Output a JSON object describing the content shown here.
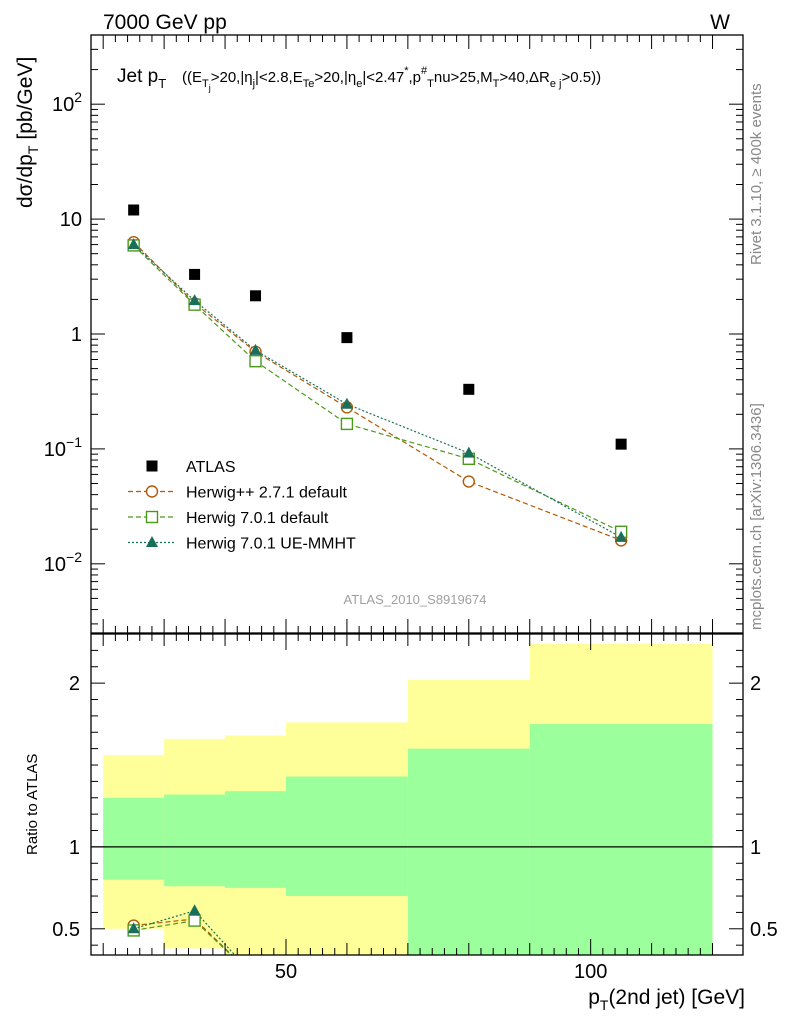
{
  "header": {
    "left": "7000 GeV pp",
    "right": "W"
  },
  "side_text": {
    "rivet": "Rivet 3.1.10, ≥ 400k events",
    "mcplots": "mcplots.cern.ch [arXiv:1306.3436]"
  },
  "chart_data": [
    {
      "type": "scatter",
      "panel": "main",
      "title": "Jet pT ((ETj>20,|ηj|<2.8,ETe>20,|ηe|<2.47*,pT#nu>25,MT>40,ΔRej>0.5))",
      "title_parts": {
        "main": "Jet p",
        "sub": "T",
        "cuts": "((E",
        "segments": [
          {
            "t": "((E",
            "s": "b"
          },
          {
            "t": "T",
            "s": "sub"
          },
          {
            "t": "j",
            "s": "subsub"
          },
          {
            "t": ">20,|η",
            "s": "b"
          },
          {
            "t": "j",
            "s": "sub"
          },
          {
            "t": "|<2.8,E",
            "s": "b"
          },
          {
            "t": "Te",
            "s": "sub"
          },
          {
            "t": ">20,|η",
            "s": "b"
          },
          {
            "t": "e",
            "s": "sub"
          },
          {
            "t": "|<2.47",
            "s": "b"
          },
          {
            "t": "*",
            "s": "sup"
          },
          {
            "t": ",p",
            "s": "b"
          },
          {
            "t": "#",
            "s": "sup"
          },
          {
            "t": "T",
            "s": "sub"
          },
          {
            "t": "nu>25,M",
            "s": "b"
          },
          {
            "t": "T",
            "s": "sub"
          },
          {
            "t": ">40,ΔR",
            "s": "b"
          },
          {
            "t": "e j",
            "s": "sub"
          },
          {
            "t": ">0.5))",
            "s": "b"
          }
        ]
      },
      "ylabel": "dσ/dp_T [pb/GeV]",
      "ylabel_parts": {
        "a": "dσ/dp",
        "b": "T",
        "c": "[pb/GeV]"
      },
      "yscale": "log",
      "ylim": [
        0.0025,
        400
      ],
      "xlim": [
        18,
        125
      ],
      "y_ticks": [
        {
          "v": 0.01,
          "base": "10",
          "exp": "−2"
        },
        {
          "v": 0.1,
          "base": "10",
          "exp": "−1"
        },
        {
          "v": 1,
          "base": "1",
          "exp": ""
        },
        {
          "v": 10,
          "base": "10",
          "exp": ""
        },
        {
          "v": 100,
          "base": "10",
          "exp": "2"
        }
      ],
      "watermark": "ATLAS_2010_S8919674",
      "legend_position": "bottom-left",
      "series": [
        {
          "name": "ATLAS",
          "marker": "filled-square",
          "color": "#000000",
          "line": "none",
          "x": [
            25,
            35,
            45,
            60,
            80,
            105
          ],
          "y": [
            12.0,
            3.3,
            2.15,
            0.93,
            0.33,
            0.11
          ]
        },
        {
          "name": "Herwig++ 2.7.1 default",
          "marker": "open-circle",
          "color": "#b35806",
          "line": "dashed",
          "x": [
            25,
            35,
            45,
            60,
            80,
            105
          ],
          "y": [
            6.3,
            1.85,
            0.7,
            0.23,
            0.052,
            0.016
          ]
        },
        {
          "name": "Herwig 7.0.1 default",
          "marker": "open-square",
          "color": "#4c9a1a",
          "line": "dashed",
          "x": [
            25,
            35,
            45,
            60,
            80,
            105
          ],
          "y": [
            5.9,
            1.8,
            0.58,
            0.165,
            0.082,
            0.019
          ]
        },
        {
          "name": "Herwig 7.0.1 UE-MMHT",
          "marker": "filled-triangle",
          "color": "#1a6f5a",
          "line": "dotted",
          "x": [
            25,
            35,
            45,
            60,
            80,
            105
          ],
          "y": [
            6.0,
            1.95,
            0.72,
            0.245,
            0.092,
            0.017
          ]
        }
      ]
    },
    {
      "type": "line",
      "panel": "ratio",
      "ylabel": "Ratio to ATLAS",
      "xlabel": "p_T(2nd jet) [GeV]",
      "xlabel_parts": {
        "a": "p",
        "b": "T",
        "c": "(2nd jet) [GeV]"
      },
      "ylim": [
        0.34,
        2.3
      ],
      "xlim": [
        18,
        125
      ],
      "y_ticks": [
        0.5,
        1,
        2
      ],
      "x_ticks": [
        50,
        100
      ],
      "bins": [
        {
          "lo": 20,
          "hi": 30,
          "inner": [
            0.8,
            1.3
          ],
          "outer": [
            0.5,
            1.56
          ]
        },
        {
          "lo": 30,
          "hi": 40,
          "inner": [
            0.76,
            1.32
          ],
          "outer": [
            0.38,
            1.66
          ]
        },
        {
          "lo": 40,
          "hi": 50,
          "inner": [
            0.75,
            1.34
          ],
          "outer": [
            0.3,
            1.68
          ]
        },
        {
          "lo": 50,
          "hi": 70,
          "inner": [
            0.7,
            1.43
          ],
          "outer": [
            0.3,
            1.76
          ]
        },
        {
          "lo": 70,
          "hi": 90,
          "inner": [
            0.3,
            1.6
          ],
          "outer": [
            0.48,
            2.02
          ]
        },
        {
          "lo": 90,
          "hi": 120,
          "inner": [
            0.3,
            1.75
          ],
          "outer": [
            0.3,
            2.24
          ]
        }
      ],
      "band_colors": {
        "inner": "#9bff9b",
        "outer": "#ffff99"
      },
      "series": [
        {
          "name": "Herwig++ 2.7.1 default",
          "color": "#b35806",
          "x": [
            25,
            35,
            45
          ],
          "y": [
            0.52,
            0.56,
            0.2
          ]
        },
        {
          "name": "Herwig 7.0.1 default",
          "color": "#4c9a1a",
          "x": [
            25,
            35,
            45
          ],
          "y": [
            0.49,
            0.55,
            0.2
          ]
        },
        {
          "name": "Herwig 7.0.1 UE-MMHT",
          "color": "#1a6f5a",
          "x": [
            25,
            35,
            45
          ],
          "y": [
            0.5,
            0.61,
            0.2
          ]
        }
      ]
    }
  ]
}
